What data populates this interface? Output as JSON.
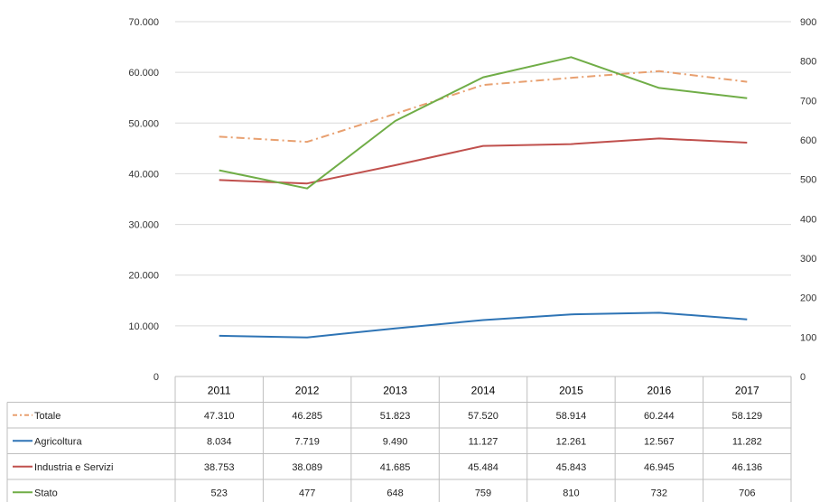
{
  "chart_data": {
    "type": "line",
    "title": "",
    "xlabel": "",
    "ylabel": "",
    "categories": [
      "2011",
      "2012",
      "2013",
      "2014",
      "2015",
      "2016",
      "2017"
    ],
    "y_left": {
      "min": 0,
      "max": 70000,
      "step": 10000,
      "tick_labels": [
        "0",
        "10.000",
        "20.000",
        "30.000",
        "40.000",
        "50.000",
        "60.000",
        "70.000"
      ]
    },
    "y_right": {
      "min": 0,
      "max": 900,
      "step": 100,
      "tick_labels": [
        "0",
        "100",
        "200",
        "300",
        "400",
        "500",
        "600",
        "700",
        "800",
        "900"
      ]
    },
    "grid": true,
    "legend": "data-table-left",
    "series": [
      {
        "name": "Totale",
        "axis": "left",
        "color": "#E8A070",
        "dash": "dashdot",
        "values": [
          47310,
          46285,
          51823,
          57520,
          58914,
          60244,
          58129
        ],
        "labels": [
          "47.310",
          "46.285",
          "51.823",
          "57.520",
          "58.914",
          "60.244",
          "58.129"
        ]
      },
      {
        "name": "Agricoltura",
        "axis": "left",
        "color": "#2E74B5",
        "dash": "solid",
        "values": [
          8034,
          7719,
          9490,
          11127,
          12261,
          12567,
          11282
        ],
        "labels": [
          "8.034",
          "7.719",
          "9.490",
          "11.127",
          "12.261",
          "12.567",
          "11.282"
        ]
      },
      {
        "name": "Industria e Servizi",
        "axis": "left",
        "color": "#C0504D",
        "dash": "solid",
        "values": [
          38753,
          38089,
          41685,
          45484,
          45843,
          46945,
          46136
        ],
        "labels": [
          "38.753",
          "38.089",
          "41.685",
          "45.484",
          "45.843",
          "46.945",
          "46.136"
        ]
      },
      {
        "name": "Stato",
        "axis": "right",
        "color": "#70AD47",
        "dash": "solid",
        "values": [
          523,
          477,
          648,
          759,
          810,
          732,
          706
        ],
        "labels": [
          "523",
          "477",
          "648",
          "759",
          "810",
          "732",
          "706"
        ]
      }
    ]
  }
}
